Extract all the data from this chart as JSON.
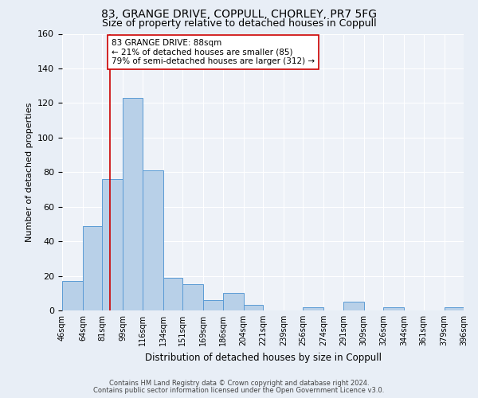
{
  "title": "83, GRANGE DRIVE, COPPULL, CHORLEY, PR7 5FG",
  "subtitle": "Size of property relative to detached houses in Coppull",
  "xlabel": "Distribution of detached houses by size in Coppull",
  "ylabel": "Number of detached properties",
  "bin_edges": [
    46,
    64,
    81,
    99,
    116,
    134,
    151,
    169,
    186,
    204,
    221,
    239,
    256,
    274,
    291,
    309,
    326,
    344,
    361,
    379,
    396
  ],
  "bar_heights": [
    17,
    49,
    76,
    123,
    81,
    19,
    15,
    6,
    10,
    3,
    0,
    0,
    2,
    0,
    5,
    0,
    2,
    0,
    0,
    2
  ],
  "bar_color": "#b8d0e8",
  "bar_edge_color": "#5b9bd5",
  "vline_x": 88,
  "vline_color": "#cc0000",
  "annotation_line1": "83 GRANGE DRIVE: 88sqm",
  "annotation_line2": "← 21% of detached houses are smaller (85)",
  "annotation_line3": "79% of semi-detached houses are larger (312) →",
  "annotation_box_color": "white",
  "annotation_box_edge_color": "#cc0000",
  "ylim": [
    0,
    160
  ],
  "yticks": [
    0,
    20,
    40,
    60,
    80,
    100,
    120,
    140,
    160
  ],
  "background_color": "#e8eef6",
  "plot_bg_color": "#eef2f8",
  "grid_color": "#ffffff",
  "footer_line1": "Contains HM Land Registry data © Crown copyright and database right 2024.",
  "footer_line2": "Contains public sector information licensed under the Open Government Licence v3.0.",
  "title_fontsize": 10,
  "subtitle_fontsize": 9,
  "tick_labels": [
    "46sqm",
    "64sqm",
    "81sqm",
    "99sqm",
    "116sqm",
    "134sqm",
    "151sqm",
    "169sqm",
    "186sqm",
    "204sqm",
    "221sqm",
    "239sqm",
    "256sqm",
    "274sqm",
    "291sqm",
    "309sqm",
    "326sqm",
    "344sqm",
    "361sqm",
    "379sqm",
    "396sqm"
  ]
}
